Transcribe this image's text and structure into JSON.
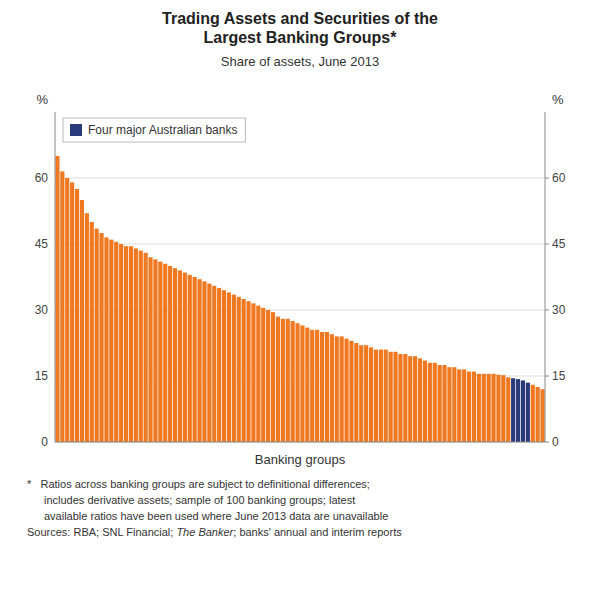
{
  "chart_data": {
    "type": "bar",
    "title": [
      "Trading Assets and Securities of the",
      "Largest Banking Groups*"
    ],
    "subtitle": "Share of assets, June 2013",
    "xlabel": "Banking groups",
    "ylabel": "%",
    "y2label": "%",
    "categories": [
      null,
      null,
      null,
      null,
      null,
      null,
      null,
      null,
      null,
      null,
      null,
      null,
      null,
      null,
      null,
      null,
      null,
      null,
      null,
      null,
      null,
      null,
      null,
      null,
      null,
      null,
      null,
      null,
      null,
      null,
      null,
      null,
      null,
      null,
      null,
      null,
      null,
      null,
      null,
      null,
      null,
      null,
      null,
      null,
      null,
      null,
      null,
      null,
      null,
      null,
      null,
      null,
      null,
      null,
      null,
      null,
      null,
      null,
      null,
      null,
      null,
      null,
      null,
      null,
      null,
      null,
      null,
      null,
      null,
      null,
      null,
      null,
      null,
      null,
      null,
      null,
      null,
      null,
      null,
      null,
      null,
      null,
      null,
      null,
      null,
      null,
      null,
      null,
      null,
      null,
      null,
      null,
      null,
      null,
      null,
      null,
      null,
      null,
      null,
      null
    ],
    "series": [
      {
        "name": "Four major Australian banks",
        "color": "#2b3a7a",
        "values": [
          65.0,
          61.5,
          60.0,
          59.0,
          57.5,
          55.0,
          52.0,
          50.0,
          48.5,
          47.5,
          46.5,
          46.0,
          45.5,
          45.0,
          44.5,
          44.5,
          44.0,
          43.5,
          43.0,
          42.0,
          41.5,
          41.0,
          40.5,
          40.0,
          39.5,
          39.0,
          38.5,
          38.0,
          37.5,
          37.0,
          36.5,
          36.0,
          35.5,
          35.0,
          34.5,
          34.0,
          33.5,
          33.0,
          32.5,
          32.0,
          31.5,
          31.0,
          30.5,
          30.0,
          29.5,
          28.5,
          28.0,
          28.0,
          27.5,
          27.0,
          26.5,
          26.0,
          25.5,
          25.5,
          25.0,
          25.0,
          24.5,
          24.0,
          24.0,
          23.5,
          23.0,
          22.5,
          22.0,
          22.0,
          21.5,
          21.0,
          21.0,
          21.0,
          20.5,
          20.5,
          20.0,
          20.0,
          19.5,
          19.5,
          19.0,
          18.5,
          18.0,
          18.0,
          17.5,
          17.5,
          17.0,
          17.0,
          16.5,
          16.5,
          16.0,
          16.0,
          15.5,
          15.5,
          15.5,
          15.5,
          15.3,
          15.2,
          14.7,
          14.5,
          14.3,
          14.0,
          13.5,
          13.0,
          12.5,
          12.0
        ],
        "colors": [
          "#f07820",
          "#f07820",
          "#f07820",
          "#f07820",
          "#f07820",
          "#f07820",
          "#f07820",
          "#f07820",
          "#f07820",
          "#f07820",
          "#f07820",
          "#f07820",
          "#f07820",
          "#f07820",
          "#f07820",
          "#f07820",
          "#f07820",
          "#f07820",
          "#f07820",
          "#f07820",
          "#f07820",
          "#f07820",
          "#f07820",
          "#f07820",
          "#f07820",
          "#f07820",
          "#f07820",
          "#f07820",
          "#f07820",
          "#f07820",
          "#f07820",
          "#f07820",
          "#f07820",
          "#f07820",
          "#f07820",
          "#f07820",
          "#f07820",
          "#f07820",
          "#f07820",
          "#f07820",
          "#f07820",
          "#f07820",
          "#f07820",
          "#f07820",
          "#f07820",
          "#f07820",
          "#f07820",
          "#f07820",
          "#f07820",
          "#f07820",
          "#f07820",
          "#f07820",
          "#f07820",
          "#f07820",
          "#f07820",
          "#f07820",
          "#f07820",
          "#f07820",
          "#f07820",
          "#f07820",
          "#f07820",
          "#f07820",
          "#f07820",
          "#f07820",
          "#f07820",
          "#f07820",
          "#f07820",
          "#f07820",
          "#f07820",
          "#f07820",
          "#f07820",
          "#f07820",
          "#f07820",
          "#f07820",
          "#f07820",
          "#f07820",
          "#f07820",
          "#f07820",
          "#f07820",
          "#f07820",
          "#f07820",
          "#f07820",
          "#f07820",
          "#f07820",
          "#f07820",
          "#f07820",
          "#f07820",
          "#f07820",
          "#f07820",
          "#f07820",
          "#f07820",
          "#f07820",
          "#f07820",
          "#2b3a7a",
          "#2b3a7a",
          "#2b3a7a",
          "#2b3a7a",
          "#f07820",
          "#f07820",
          "#f07820"
        ]
      }
    ],
    "ylim": [
      0,
      75
    ],
    "yticks": [
      0,
      15,
      30,
      45,
      60
    ],
    "y2lim": [
      0,
      75
    ],
    "y2ticks": [
      0,
      15,
      30,
      45,
      60
    ],
    "grid": true,
    "legend": "upper left",
    "tick_labels": "y",
    "notes": [
      "*   Ratios across banking groups are subject to definitional differences;",
      "includes derivative assets; sample of 100 banking groups; latest",
      "available ratios have been used where June 2013 data are unavailable"
    ],
    "source": [
      "Sources: RBA; SNL Financial; ",
      "The Banker",
      "; banks' annual and interim reports"
    ]
  }
}
